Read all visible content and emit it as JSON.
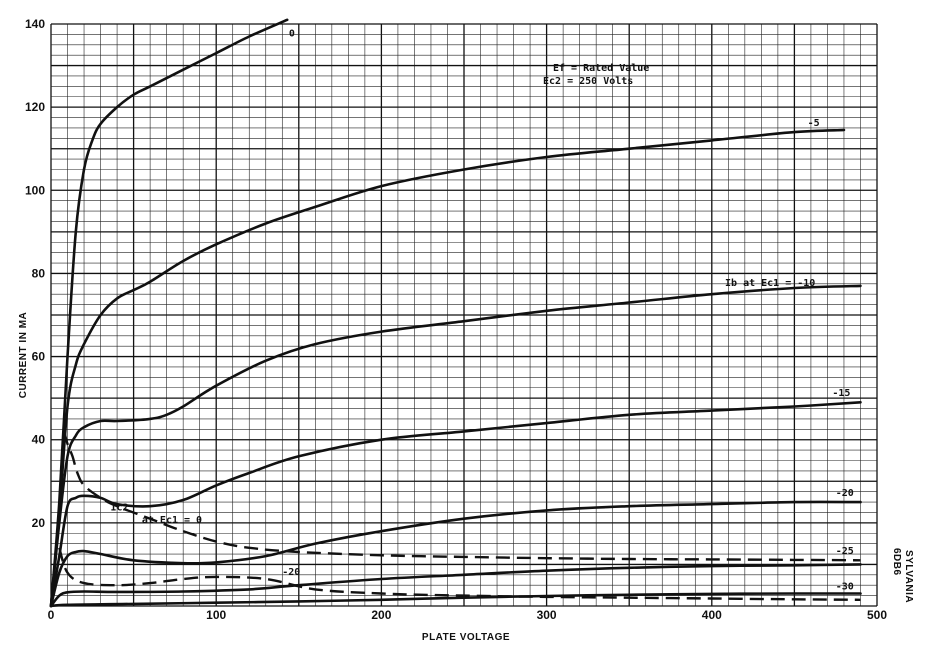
{
  "chart_data": {
    "type": "line",
    "xlabel": "PLATE VOLTAGE",
    "ylabel": "CURRENT IN MA",
    "xlim": [
      0,
      500
    ],
    "ylim": [
      0,
      140
    ],
    "x_ticks": [
      "0",
      "100",
      "200",
      "300",
      "400",
      "500"
    ],
    "y_ticks": [
      "20",
      "40",
      "60",
      "80",
      "100",
      "120",
      "140"
    ],
    "grid": true,
    "conditions": [
      "Ef  =  Rated Value",
      "Ec2  =  250 Volts"
    ],
    "side_label": [
      "SYLVANIA",
      "6DB6"
    ],
    "series": [
      {
        "name": "0",
        "style": "solid",
        "x": [
          0,
          5,
          10,
          15,
          20,
          25,
          30,
          40,
          50,
          60,
          80,
          100,
          120,
          143
        ],
        "y": [
          0,
          25,
          60,
          90,
          105,
          112,
          116,
          120,
          123,
          125,
          129,
          133,
          137,
          141
        ]
      },
      {
        "name": "-5",
        "style": "solid",
        "x": [
          0,
          5,
          10,
          15,
          20,
          30,
          40,
          50,
          60,
          80,
          100,
          130,
          160,
          200,
          250,
          300,
          350,
          400,
          450,
          480
        ],
        "y": [
          0,
          22,
          48,
          58,
          63,
          70,
          74,
          76,
          78,
          83,
          87,
          92,
          96,
          101,
          105,
          108,
          110,
          112,
          114,
          114.5
        ]
      },
      {
        "name": "Ib at Ec1 = -10",
        "style": "solid",
        "x": [
          0,
          5,
          10,
          15,
          20,
          30,
          40,
          60,
          70,
          80,
          100,
          130,
          160,
          200,
          250,
          300,
          350,
          400,
          450,
          490
        ],
        "y": [
          0,
          20,
          36,
          41,
          43,
          44.5,
          44.5,
          45,
          46,
          48,
          53,
          59,
          63,
          66,
          68.5,
          71,
          73,
          75,
          76.5,
          77
        ]
      },
      {
        "name": "-15",
        "style": "solid",
        "x": [
          0,
          5,
          10,
          15,
          20,
          30,
          40,
          60,
          80,
          100,
          120,
          150,
          200,
          250,
          300,
          350,
          400,
          450,
          490
        ],
        "y": [
          0,
          12,
          24,
          26,
          26.5,
          26,
          24.5,
          24,
          25.5,
          29,
          32,
          36,
          40,
          42,
          44,
          46,
          47,
          48,
          49
        ]
      },
      {
        "name": "-20",
        "style": "solid",
        "x": [
          0,
          5,
          10,
          15,
          20,
          30,
          50,
          80,
          100,
          130,
          160,
          200,
          250,
          300,
          350,
          400,
          450,
          490
        ],
        "y": [
          0,
          8,
          12,
          13,
          13.2,
          12.5,
          11,
          10.3,
          10.5,
          12,
          15,
          18,
          21,
          23,
          24,
          24.5,
          25,
          25
        ]
      },
      {
        "name": "-25",
        "style": "solid",
        "x": [
          0,
          5,
          10,
          20,
          40,
          80,
          120,
          150,
          200,
          250,
          300,
          350,
          400,
          450,
          490
        ],
        "y": [
          0,
          2.5,
          3.3,
          3.5,
          3.4,
          3.5,
          4,
          5,
          6.5,
          7.5,
          8.5,
          9.2,
          9.6,
          9.8,
          10
        ]
      },
      {
        "name": "-30",
        "style": "solid",
        "x": [
          0,
          10,
          50,
          100,
          150,
          200,
          250,
          300,
          350,
          400,
          450,
          490
        ],
        "y": [
          0,
          0.3,
          0.5,
          0.8,
          1.1,
          1.5,
          2.0,
          2.4,
          2.7,
          2.9,
          3.0,
          3.0
        ]
      },
      {
        "name": "Ic2 at Ec1 = 0",
        "style": "dashed",
        "x": [
          8,
          10,
          13,
          16,
          20,
          30,
          40,
          60,
          80,
          100,
          120,
          150,
          200,
          250,
          300,
          350,
          400,
          450,
          490
        ],
        "y": [
          42,
          39,
          36,
          32,
          29,
          26,
          24,
          21,
          18,
          15.5,
          14,
          13,
          12.2,
          11.8,
          11.5,
          11.3,
          11.2,
          11.1,
          11
        ]
      },
      {
        "name": "-20",
        "style": "dashed",
        "x": [
          5,
          10,
          20,
          40,
          60,
          80,
          100,
          130,
          160,
          200,
          250,
          300,
          350,
          400,
          450,
          490
        ],
        "y": [
          14,
          8,
          5.5,
          5,
          5.5,
          6.5,
          7,
          6.5,
          4,
          3,
          2.5,
          2.2,
          2,
          1.8,
          1.6,
          1.5
        ]
      }
    ],
    "curve_labels": [
      {
        "text": "0",
        "x": 144,
        "y": 137
      },
      {
        "text": "-5",
        "x": 458,
        "y": 115.5
      },
      {
        "text": "Ib at Ec1 = -10",
        "x": 408,
        "y": 77
      },
      {
        "text": "-15",
        "x": 473,
        "y": 50.5
      },
      {
        "text": "-20",
        "x": 475,
        "y": 26.5
      },
      {
        "text": "-25",
        "x": 475,
        "y": 12.5
      },
      {
        "text": "-30",
        "x": 475,
        "y": 4
      },
      {
        "text": "Ic2",
        "x": 36,
        "y": 23
      },
      {
        "text": "at Ec1 = 0",
        "x": 55,
        "y": 20
      },
      {
        "text": "-20",
        "x": 140,
        "y": 7.5
      }
    ]
  }
}
